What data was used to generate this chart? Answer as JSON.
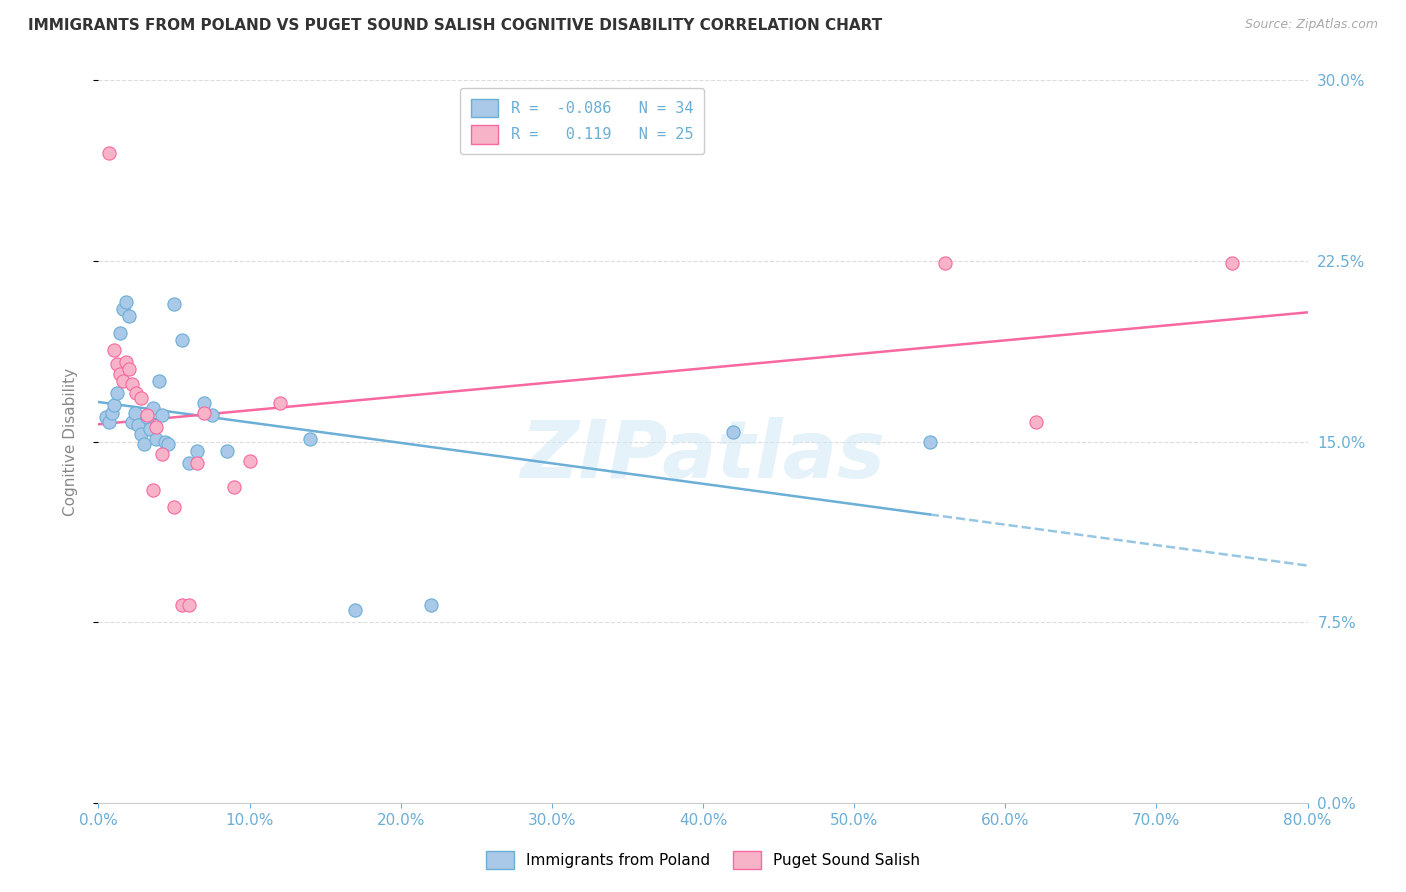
{
  "title": "IMMIGRANTS FROM POLAND VS PUGET SOUND SALISH COGNITIVE DISABILITY CORRELATION CHART",
  "source": "Source: ZipAtlas.com",
  "xlim": [
    0.0,
    0.8
  ],
  "ylim": [
    0.0,
    0.3
  ],
  "legend_label1": "Immigrants from Poland",
  "legend_label2": "Puget Sound Salish",
  "R1": -0.086,
  "N1": 34,
  "R2": 0.119,
  "N2": 25,
  "color1": "#aac9e8",
  "color2": "#f7b3c8",
  "line_color1": "#6baed6",
  "line_color2": "#f768a1",
  "blue_scatter": [
    [
      0.005,
      0.16
    ],
    [
      0.007,
      0.158
    ],
    [
      0.009,
      0.162
    ],
    [
      0.01,
      0.165
    ],
    [
      0.012,
      0.17
    ],
    [
      0.014,
      0.195
    ],
    [
      0.016,
      0.205
    ],
    [
      0.018,
      0.208
    ],
    [
      0.02,
      0.202
    ],
    [
      0.022,
      0.158
    ],
    [
      0.024,
      0.162
    ],
    [
      0.026,
      0.157
    ],
    [
      0.028,
      0.153
    ],
    [
      0.03,
      0.149
    ],
    [
      0.032,
      0.16
    ],
    [
      0.034,
      0.155
    ],
    [
      0.036,
      0.164
    ],
    [
      0.038,
      0.151
    ],
    [
      0.04,
      0.175
    ],
    [
      0.042,
      0.161
    ],
    [
      0.044,
      0.15
    ],
    [
      0.046,
      0.149
    ],
    [
      0.05,
      0.207
    ],
    [
      0.055,
      0.192
    ],
    [
      0.06,
      0.141
    ],
    [
      0.065,
      0.146
    ],
    [
      0.07,
      0.166
    ],
    [
      0.075,
      0.161
    ],
    [
      0.085,
      0.146
    ],
    [
      0.14,
      0.151
    ],
    [
      0.17,
      0.08
    ],
    [
      0.22,
      0.082
    ],
    [
      0.42,
      0.154
    ],
    [
      0.55,
      0.15
    ]
  ],
  "pink_scatter": [
    [
      0.007,
      0.27
    ],
    [
      0.01,
      0.188
    ],
    [
      0.012,
      0.182
    ],
    [
      0.014,
      0.178
    ],
    [
      0.016,
      0.175
    ],
    [
      0.018,
      0.183
    ],
    [
      0.02,
      0.18
    ],
    [
      0.022,
      0.174
    ],
    [
      0.025,
      0.17
    ],
    [
      0.028,
      0.168
    ],
    [
      0.032,
      0.161
    ],
    [
      0.036,
      0.13
    ],
    [
      0.038,
      0.156
    ],
    [
      0.042,
      0.145
    ],
    [
      0.05,
      0.123
    ],
    [
      0.055,
      0.082
    ],
    [
      0.06,
      0.082
    ],
    [
      0.065,
      0.141
    ],
    [
      0.07,
      0.162
    ],
    [
      0.09,
      0.131
    ],
    [
      0.1,
      0.142
    ],
    [
      0.12,
      0.166
    ],
    [
      0.56,
      0.224
    ],
    [
      0.62,
      0.158
    ],
    [
      0.75,
      0.224
    ]
  ],
  "bg_color": "#ffffff",
  "grid_color": "#dddddd",
  "title_color": "#333333",
  "ylabel": "Cognitive Disability",
  "axis_label_color": "#888888",
  "tick_color": "#6baed6",
  "watermark": "ZIPatlas",
  "x_tick_vals": [
    0.0,
    0.1,
    0.2,
    0.3,
    0.4,
    0.5,
    0.6,
    0.7,
    0.8
  ],
  "x_tick_labels": [
    "0.0%",
    "10.0%",
    "20.0%",
    "30.0%",
    "40.0%",
    "50.0%",
    "60.0%",
    "70.0%",
    "80.0%"
  ],
  "y_tick_vals": [
    0.0,
    0.075,
    0.15,
    0.225,
    0.3
  ],
  "y_tick_labels": [
    "0.0%",
    "7.5%",
    "15.0%",
    "22.5%",
    "30.0%"
  ]
}
